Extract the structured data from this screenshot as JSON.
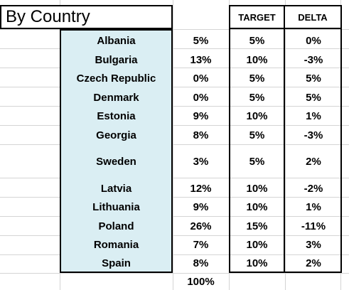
{
  "title": "By Country",
  "headers": {
    "target": "TARGET",
    "delta": "DELTA"
  },
  "rows": [
    {
      "country": "Albania",
      "actual": "5%",
      "target": "5%",
      "delta": "0%"
    },
    {
      "country": "Bulgaria",
      "actual": "13%",
      "target": "10%",
      "delta": "-3%"
    },
    {
      "country": "Czech Republic",
      "actual": "0%",
      "target": "5%",
      "delta": "5%"
    },
    {
      "country": "Denmark",
      "actual": "0%",
      "target": "5%",
      "delta": "5%"
    },
    {
      "country": "Estonia",
      "actual": "9%",
      "target": "10%",
      "delta": "1%"
    },
    {
      "country": "Georgia",
      "actual": "8%",
      "target": "5%",
      "delta": "-3%"
    },
    {
      "country": "Sweden",
      "actual": "3%",
      "target": "5%",
      "delta": "2%"
    },
    {
      "country": "Latvia",
      "actual": "12%",
      "target": "10%",
      "delta": "-2%"
    },
    {
      "country": "Lithuania",
      "actual": "9%",
      "target": "10%",
      "delta": "1%"
    },
    {
      "country": "Poland",
      "actual": "26%",
      "target": "15%",
      "delta": "-11%"
    },
    {
      "country": "Romania",
      "actual": "7%",
      "target": "10%",
      "delta": "3%"
    },
    {
      "country": "Spain",
      "actual": "8%",
      "target": "10%",
      "delta": "2%"
    }
  ],
  "total": "100%",
  "colors": {
    "country_fill": "#daeef3",
    "border": "#000000",
    "gridline": "#d4d4d4"
  }
}
